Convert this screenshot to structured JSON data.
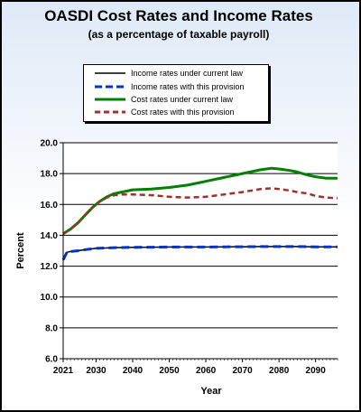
{
  "chart_data": {
    "type": "line",
    "title": "OASDI Cost Rates and Income Rates",
    "subtitle": "(as a percentage of taxable payroll)",
    "xlabel": "Year",
    "ylabel": "Percent",
    "xlim": [
      2021,
      2096
    ],
    "ylim": [
      6.0,
      20.0
    ],
    "x_ticks": [
      "2021",
      "2030",
      "2040",
      "2050",
      "2060",
      "2070",
      "2080",
      "2090"
    ],
    "y_ticks": [
      "6.0",
      "8.0",
      "10.0",
      "12.0",
      "14.0",
      "16.0",
      "18.0",
      "20.0"
    ],
    "grid": true,
    "legend_placement": "top",
    "series": [
      {
        "name": "Income rates under current law",
        "color": "#000000",
        "style": "solid",
        "x": [
          2021,
          2022,
          2023,
          2025,
          2028,
          2030,
          2035,
          2040,
          2045,
          2050,
          2055,
          2060,
          2065,
          2070,
          2075,
          2080,
          2085,
          2090,
          2096
        ],
        "y": [
          12.4,
          12.9,
          12.95,
          13.0,
          13.1,
          13.15,
          13.2,
          13.22,
          13.23,
          13.24,
          13.24,
          13.24,
          13.25,
          13.26,
          13.27,
          13.27,
          13.27,
          13.25,
          13.25
        ]
      },
      {
        "name": "Income rates with this provision",
        "color": "#0033cc",
        "style": "dashed",
        "x": [
          2021,
          2022,
          2023,
          2025,
          2028,
          2030,
          2035,
          2040,
          2045,
          2050,
          2055,
          2060,
          2065,
          2070,
          2075,
          2080,
          2085,
          2090,
          2096
        ],
        "y": [
          12.4,
          12.9,
          12.95,
          13.0,
          13.1,
          13.15,
          13.2,
          13.22,
          13.23,
          13.24,
          13.24,
          13.24,
          13.25,
          13.26,
          13.27,
          13.27,
          13.27,
          13.25,
          13.25
        ]
      },
      {
        "name": "Cost rates under current law",
        "color": "#008000",
        "style": "solid",
        "x": [
          2021,
          2023,
          2025,
          2027,
          2029,
          2031,
          2033,
          2035,
          2037,
          2040,
          2045,
          2050,
          2055,
          2060,
          2065,
          2070,
          2075,
          2078,
          2080,
          2083,
          2085,
          2088,
          2090,
          2093,
          2096
        ],
        "y": [
          14.1,
          14.4,
          14.8,
          15.3,
          15.8,
          16.2,
          16.5,
          16.7,
          16.8,
          16.95,
          17.0,
          17.1,
          17.25,
          17.5,
          17.75,
          18.0,
          18.25,
          18.35,
          18.3,
          18.2,
          18.1,
          17.9,
          17.8,
          17.7,
          17.7
        ]
      },
      {
        "name": "Cost rates with this provision",
        "color": "#a0302a",
        "style": "dashed",
        "x": [
          2021,
          2023,
          2025,
          2027,
          2029,
          2031,
          2033,
          2035,
          2037,
          2040,
          2045,
          2050,
          2055,
          2060,
          2065,
          2070,
          2075,
          2078,
          2080,
          2083,
          2085,
          2088,
          2090,
          2093,
          2096
        ],
        "y": [
          14.1,
          14.4,
          14.8,
          15.3,
          15.8,
          16.2,
          16.45,
          16.6,
          16.65,
          16.65,
          16.6,
          16.5,
          16.45,
          16.5,
          16.65,
          16.8,
          17.0,
          17.05,
          17.0,
          16.9,
          16.8,
          16.7,
          16.55,
          16.45,
          16.4
        ]
      }
    ]
  }
}
